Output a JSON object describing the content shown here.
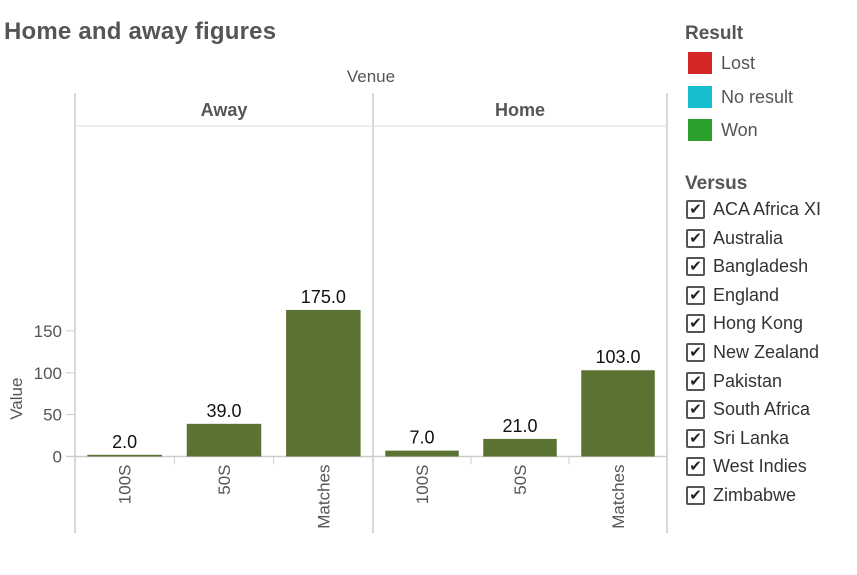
{
  "title": "Home and away figures",
  "chart_data": {
    "type": "bar",
    "column_header": "Venue",
    "ylabel": "Value",
    "ylim": [
      0,
      190
    ],
    "yticks": [
      0,
      50,
      100,
      150
    ],
    "bar_color": "#5a7332",
    "panels": [
      {
        "name": "Away",
        "categories": [
          "100S",
          "50S",
          "Matches"
        ],
        "values": [
          2.0,
          39.0,
          175.0
        ],
        "labels": [
          "2.0",
          "39.0",
          "175.0"
        ]
      },
      {
        "name": "Home",
        "categories": [
          "100S",
          "50S",
          "Matches"
        ],
        "values": [
          7.0,
          21.0,
          103.0
        ],
        "labels": [
          "7.0",
          "21.0",
          "103.0"
        ]
      }
    ]
  },
  "legend": {
    "result_title": "Result",
    "result_items": [
      {
        "label": "Lost",
        "color": "#d62728"
      },
      {
        "label": "No result",
        "color": "#17becf"
      },
      {
        "label": "Won",
        "color": "#2ca02c"
      }
    ],
    "versus_title": "Versus",
    "versus_items": [
      {
        "label": "ACA Africa XI",
        "checked": true
      },
      {
        "label": "Australia",
        "checked": true
      },
      {
        "label": "Bangladesh",
        "checked": true
      },
      {
        "label": "England",
        "checked": true
      },
      {
        "label": "Hong Kong",
        "checked": true
      },
      {
        "label": "New Zealand",
        "checked": true
      },
      {
        "label": "Pakistan",
        "checked": true
      },
      {
        "label": "South Africa",
        "checked": true
      },
      {
        "label": "Sri Lanka",
        "checked": true
      },
      {
        "label": "West Indies",
        "checked": true
      },
      {
        "label": "Zimbabwe",
        "checked": true
      }
    ]
  }
}
